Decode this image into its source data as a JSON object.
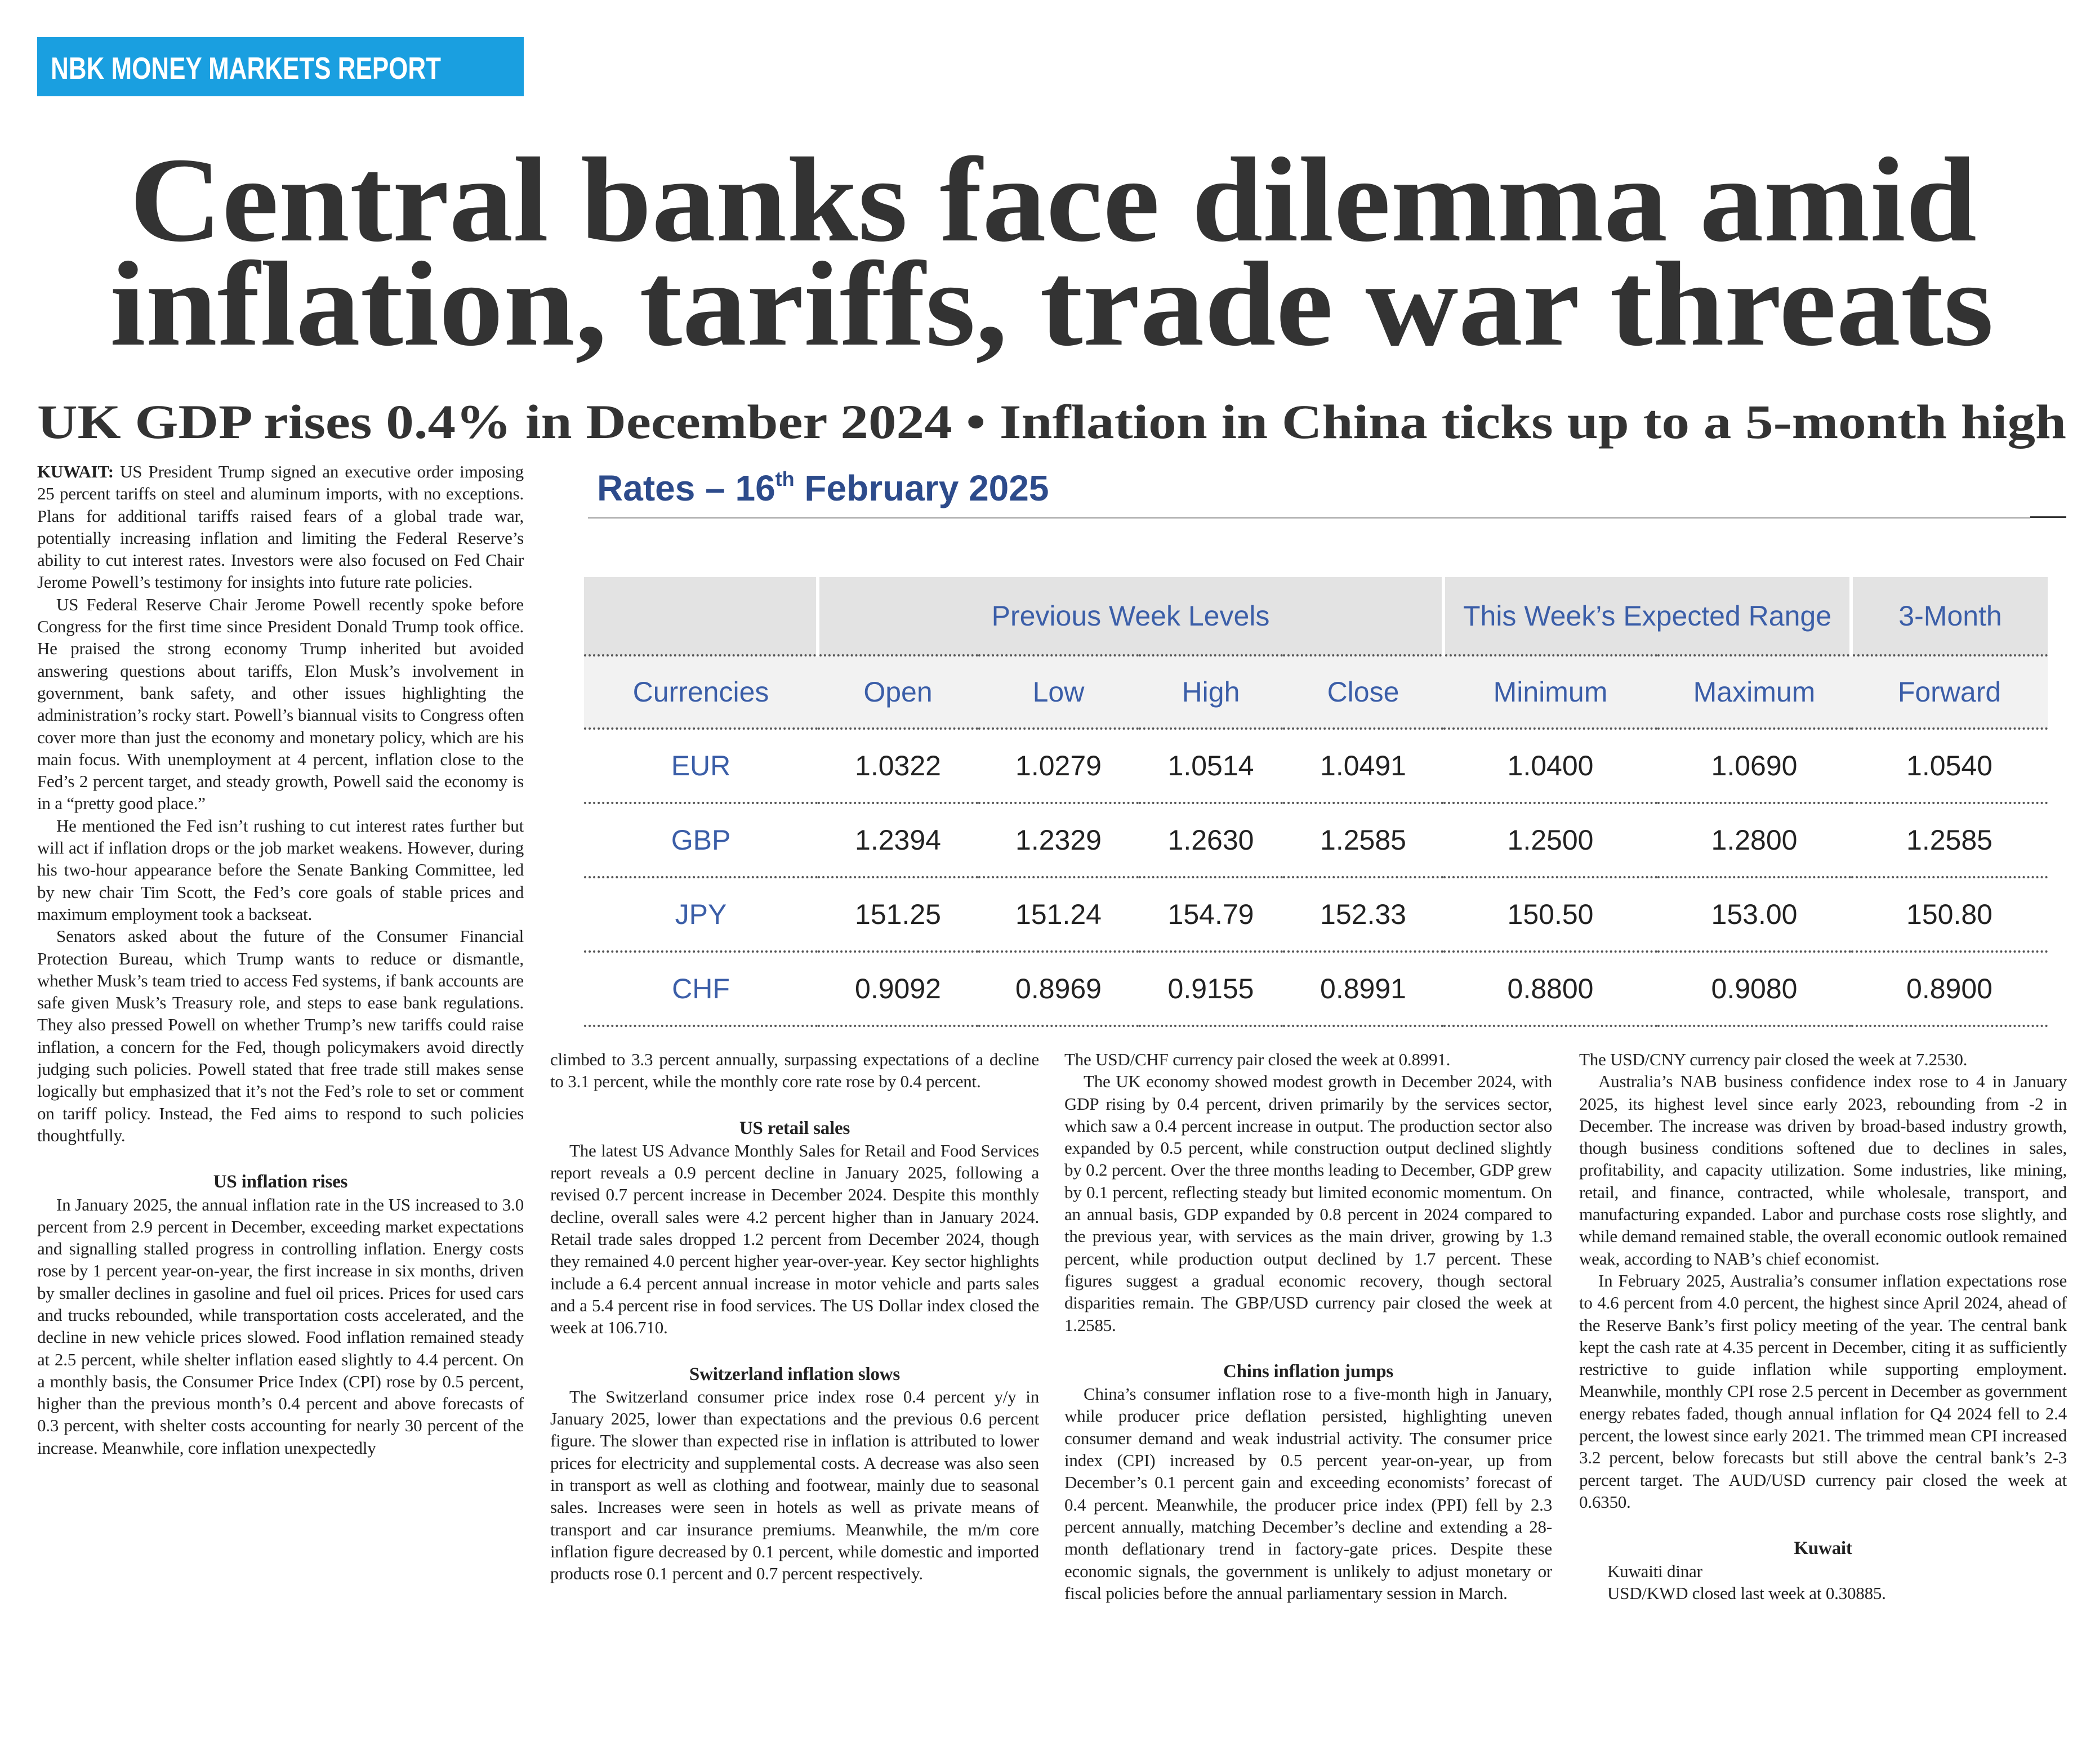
{
  "header": {
    "tag": "NBK MONEY MARKETS REPORT",
    "headline": [
      "Central banks face dilemma amid",
      "inflation, tariffs, trade war threats"
    ],
    "subheadline": "UK GDP rises 0.4% in December 2024 • Inflation in China ticks up to a 5-month high"
  },
  "table": {
    "title": {
      "prefix": "Rates – 16",
      "sup": "th",
      "suffix": " February 2025"
    },
    "group_headers": [
      "Previous Week Levels",
      "This Week’s Expected Range",
      "3-Month"
    ],
    "column_headers": [
      "Currencies",
      "Open",
      "Low",
      "High",
      "Close",
      "Minimum",
      "Maximum",
      "Forward"
    ],
    "rows": [
      [
        "EUR",
        "1.0322",
        "1.0279",
        "1.0514",
        "1.0491",
        "1.0400",
        "1.0690",
        "1.0540"
      ],
      [
        "GBP",
        "1.2394",
        "1.2329",
        "1.2630",
        "1.2585",
        "1.2500",
        "1.2800",
        "1.2585"
      ],
      [
        "JPY",
        "151.25",
        "151.24",
        "154.79",
        "152.33",
        "150.50",
        "153.00",
        "150.80"
      ],
      [
        "CHF",
        "0.9092",
        "0.8969",
        "0.9155",
        "0.8991",
        "0.8800",
        "0.9080",
        "0.8900"
      ]
    ]
  },
  "columns": [
    [
      {
        "dateline": "KUWAIT:",
        "paragraph": "US President Trump signed an executive order imposing 25 percent tariffs on steel and aluminum imports, with no exceptions. Plans for additional tariffs raised fears of a global trade war, potentially increasing inflation and limiting the Federal Reserve’s ability to cut interest rates. Investors were also focused on Fed Chair Jerome Powell’s testimony for insights into future rate policies."
      },
      {
        "paragraph": "US Federal Reserve Chair Jerome Powell recently spoke before Congress for the first time since President Donald Trump took office. He praised the strong economy Trump inherited but avoided answering questions about tariffs, Elon Musk’s involvement in government, bank safety, and other issues highlighting the administration’s rocky start. Powell’s biannual visits to Congress often cover more than just the economy and monetary policy, which are his main focus. With unemployment at 4 percent, inflation close to the Fed’s 2 percent target, and steady growth, Powell said the economy is in a “pretty good place.”"
      },
      {
        "paragraph": "He mentioned the Fed isn’t rushing to cut interest rates further but will act if inflation drops or the job market weakens. However, during his two-hour appearance before the Senate Banking Committee, led by new chair Tim Scott, the Fed’s core goals of stable prices and maximum employment took a backseat."
      },
      {
        "paragraph": "Senators asked about the future of the Consumer Financial Protection Bureau, which Trump wants to reduce or dismantle, whether Musk’s team tried to access Fed systems, if bank accounts are safe given Musk’s Treasury role, and steps to ease bank regulations. They also pressed Powell on whether Trump’s new tariffs could raise inflation, a concern for the Fed, though policymakers avoid directly judging such policies. Powell stated that free trade still makes sense logically but emphasized that it’s not the Fed’s role to set or comment on tariff policy. Instead, the Fed aims to respond to such policies thoughtfully."
      },
      {
        "heading": "US inflation rises"
      },
      {
        "paragraph": "In January 2025, the annual inflation rate in the US increased to 3.0 percent from 2.9 percent in December, exceeding market expectations and signalling stalled progress in controlling inflation. Energy costs rose by 1 percent year-on-year, the first increase in six months, driven by smaller declines in gasoline and fuel oil prices. Prices for used cars and trucks rebounded, while transportation costs accelerated, and the decline in new vehicle prices slowed. Food inflation remained steady at 2.5 percent, while shelter inflation eased slightly to 4.4 percent. On a monthly basis, the Consumer Price Index (CPI) rose by 0.5 percent, higher than the previous month’s 0.4 percent and above forecasts of 0.3 percent, with shelter costs accounting for nearly 30 percent of the increase. Meanwhile, core inflation unexpectedly"
      }
    ],
    [
      {
        "continued": "climbed to 3.3 percent annually, surpassing expectations of a decline to 3.1 percent, while the monthly core rate rose by 0.4 percent."
      },
      {
        "heading": "US retail sales"
      },
      {
        "paragraph": "The latest US Advance Monthly Sales for Retail and Food Services report reveals a 0.9 percent decline in January 2025, following a revised 0.7 percent increase in December 2024. Despite this monthly decline, overall sales were 4.2 percent higher than in January 2024. Retail trade sales dropped 1.2 percent from December 2024, though they remained 4.0 percent higher year-over-year. Key sector highlights include a 6.4 percent annual increase in motor vehicle and parts sales and a 5.4 percent rise in food services. The US Dollar index closed the week at 106.710."
      },
      {
        "heading": "Switzerland inflation slows"
      },
      {
        "paragraph": "The Switzerland consumer price index rose 0.4 percent y/y in January 2025, lower than expectations and the previous 0.6 percent figure. The slower than expected rise in inflation is attributed to lower prices for electricity and supplemental costs. A decrease was also seen in transport as well as clothing and footwear, mainly due to seasonal sales. Increases were seen in hotels as well as private means of transport and car insurance premiums. Meanwhile, the m/m core inflation figure decreased by 0.1 percent, while domestic and imported products rose 0.1 percent and 0.7 percent respectively."
      }
    ],
    [
      {
        "continued": "The USD/CHF currency pair closed the week at 0.8991."
      },
      {
        "paragraph": "The UK economy showed modest growth in December 2024, with GDP rising by 0.4 percent, driven primarily by the services sector, which saw a 0.4 percent increase in output. The production sector also expanded by 0.5 percent, while construction output declined slightly by 0.2 percent. Over the three months leading to December, GDP grew by 0.1 percent, reflecting steady but limited economic momentum. On an annual basis, GDP expanded by 0.8 percent in 2024 compared to the previous year, with services as the main driver, growing by 1.3 percent, while production output declined by 1.7 percent. These figures suggest a gradual economic recovery, though sectoral disparities remain. The GBP/USD currency pair closed the week at 1.2585."
      },
      {
        "heading": "Chins inflation jumps"
      },
      {
        "paragraph": "China’s consumer inflation rose to a five-month high in January, while producer price deflation persisted, highlighting uneven consumer demand and weak industrial activity. The consumer price index (CPI) increased by 0.5 percent year-on-year, up from December’s 0.1 percent gain and exceeding economists’ forecast of 0.4 percent. Meanwhile, the producer price index (PPI) fell by 2.3 percent annually, matching December’s decline and extending a 28-month deflationary trend in factory-gate prices. Despite these economic signals, the government is unlikely to adjust monetary or fiscal policies before the annual parliamentary session in March."
      }
    ],
    [
      {
        "continued": "The USD/CNY currency pair closed the week at 7.2530."
      },
      {
        "paragraph": "Australia’s NAB business confidence index rose to 4 in January 2025, its highest level since early 2023, rebounding from -2 in December. The increase was driven by broad-based industry growth, though business conditions softened due to declines in sales, profitability, and capacity utilization. Some industries, like mining, retail, and finance, contracted, while wholesale, transport, and manufacturing expanded. Labor and purchase costs rose slightly, and while demand remained stable, the overall economic outlook remained weak, according to NAB’s chief economist."
      },
      {
        "paragraph": "In February 2025, Australia’s consumer inflation expectations rose to 4.6 percent from 4.0 percent, the highest since April 2024, ahead of the Reserve Bank’s first policy meeting of the year. The central bank kept the cash rate at 4.35 percent in December, citing it as sufficiently restrictive to guide inflation while supporting employment. Meanwhile, monthly CPI rose 2.5 percent in December as government energy rebates faded, though annual inflation for Q4 2024 fell to 2.4 percent, the lowest since early 2021. The trimmed mean CPI increased 3.2 percent, below forecasts but still above the central bank’s 2-3 percent target. The AUD/USD currency pair closed the week at 0.6350."
      },
      {
        "heading": "Kuwait"
      },
      {
        "line": "Kuwaiti dinar"
      },
      {
        "line": "USD/KWD closed last week at 0.30885."
      }
    ]
  ]
}
